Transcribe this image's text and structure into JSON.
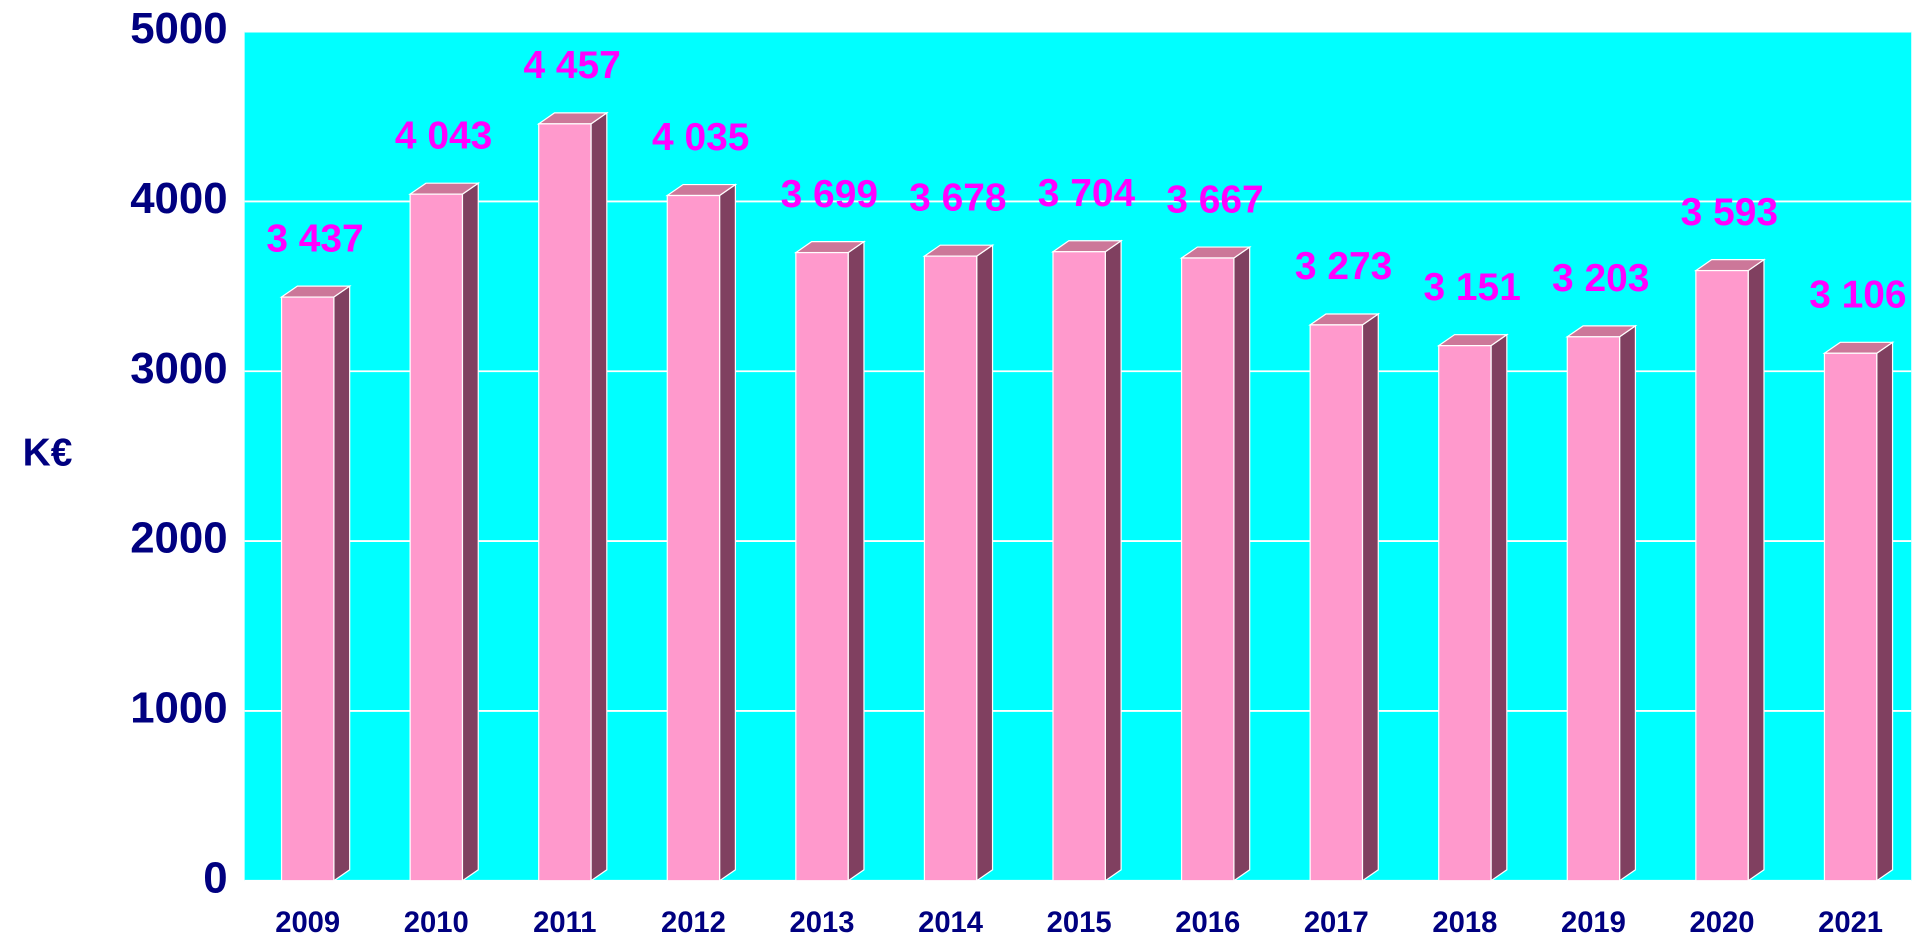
{
  "chart_data": {
    "type": "bar3d",
    "y_label": "K€",
    "categories": [
      "2009",
      "2010",
      "2011",
      "2012",
      "2013",
      "2014",
      "2015",
      "2016",
      "2017",
      "2018",
      "2019",
      "2020",
      "2021"
    ],
    "values": [
      3437,
      4043,
      4457,
      4035,
      3699,
      3678,
      3704,
      3667,
      3273,
      3151,
      3203,
      3593,
      3106
    ],
    "value_labels": [
      "3 437",
      "4 043",
      "4 457",
      "4 035",
      "3 699",
      "3 678",
      "3 704",
      "3 667",
      "3 273",
      "3 151",
      "3 203",
      "3 593",
      "3 106"
    ],
    "color": "#ff99cc",
    "ylim": [
      0,
      5000
    ],
    "yticks": [
      0,
      1000,
      2000,
      3000,
      4000,
      5000
    ],
    "grid": true
  }
}
